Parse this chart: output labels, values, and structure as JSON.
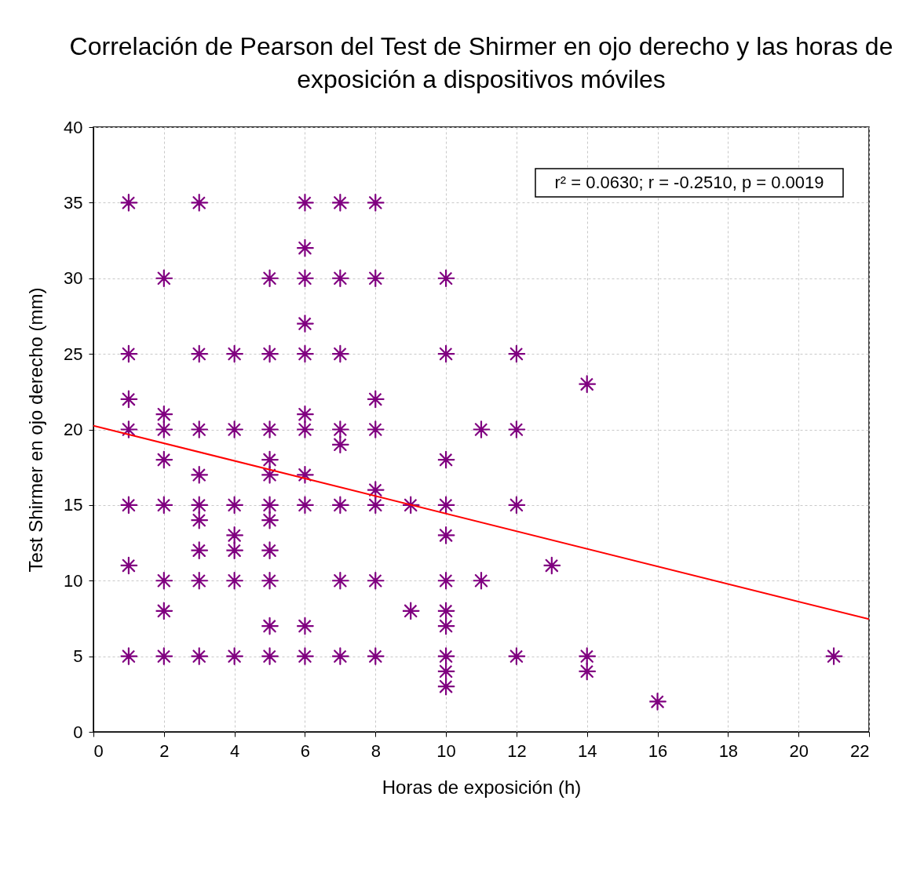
{
  "chart_data": {
    "type": "scatter",
    "title": "Correlación de Pearson del Test de Shirmer en ojo derecho y las horas de exposición a dispositivos móviles",
    "xlabel": "Horas de exposición (h)",
    "ylabel": "Test Shirmer en ojo derecho (mm)",
    "annotations": [
      "r² = 0.0630;  r = -0.2510, p = 0.0019"
    ],
    "xlim": [
      0,
      22
    ],
    "xticks": [
      0,
      2,
      4,
      6,
      8,
      10,
      12,
      14,
      16,
      18,
      20,
      22
    ],
    "ylim": [
      0,
      40
    ],
    "yticks": [
      0,
      5,
      10,
      15,
      20,
      25,
      30,
      35,
      40
    ],
    "grid": true,
    "series": [
      {
        "marker": "cross",
        "color": "#800080",
        "x": [
          1,
          1,
          1,
          1,
          1,
          1,
          1,
          2,
          2,
          2,
          2,
          2,
          2,
          2,
          2,
          3,
          3,
          3,
          3,
          3,
          3,
          3,
          3,
          3,
          4,
          4,
          4,
          4,
          4,
          4,
          4,
          5,
          5,
          5,
          5,
          5,
          5,
          5,
          5,
          5,
          5,
          5,
          6,
          6,
          6,
          6,
          6,
          6,
          6,
          6,
          6,
          6,
          6,
          7,
          7,
          7,
          7,
          7,
          7,
          7,
          7,
          8,
          8,
          8,
          8,
          8,
          8,
          8,
          8,
          9,
          9,
          10,
          10,
          10,
          10,
          10,
          10,
          10,
          10,
          10,
          10,
          10,
          11,
          11,
          12,
          12,
          12,
          12,
          13,
          14,
          14,
          14,
          16,
          21
        ],
        "values": [
          35,
          25,
          22,
          20,
          15,
          11,
          5,
          30,
          21,
          20,
          18,
          15,
          10,
          8,
          5,
          35,
          25,
          20,
          17,
          15,
          14,
          12,
          10,
          5,
          25,
          20,
          15,
          13,
          12,
          10,
          5,
          30,
          25,
          20,
          18,
          17,
          15,
          14,
          12,
          10,
          7,
          5,
          35,
          32,
          30,
          27,
          25,
          21,
          20,
          17,
          15,
          7,
          5,
          35,
          30,
          25,
          20,
          19,
          15,
          10,
          5,
          35,
          30,
          22,
          20,
          16,
          15,
          10,
          5,
          15,
          8,
          30,
          25,
          18,
          15,
          13,
          10,
          8,
          7,
          5,
          4,
          3,
          20,
          10,
          25,
          20,
          15,
          5,
          11,
          23,
          5,
          4,
          2,
          5
        ]
      },
      {
        "type": "line",
        "color": "#ff0000",
        "x": [
          0,
          22
        ],
        "values": [
          20.25,
          7.45
        ]
      }
    ]
  }
}
